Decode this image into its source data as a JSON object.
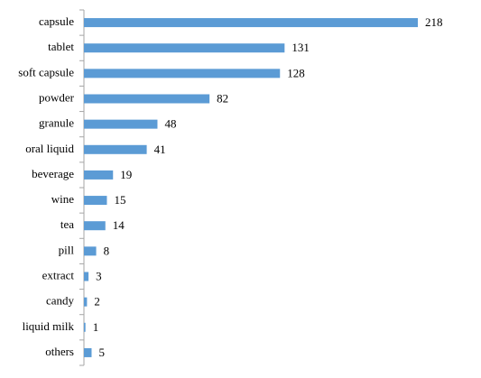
{
  "chart_data": {
    "type": "bar",
    "orientation": "horizontal",
    "color": "#5b9bd5",
    "categories": [
      "capsule",
      "tablet",
      "soft capsule",
      "powder",
      "granule",
      "oral liquid",
      "beverage",
      "wine",
      "tea",
      "pill",
      "extract",
      "candy",
      "liquid milk",
      "others"
    ],
    "values": [
      218,
      131,
      128,
      82,
      48,
      41,
      19,
      15,
      14,
      8,
      3,
      2,
      1,
      5
    ]
  }
}
